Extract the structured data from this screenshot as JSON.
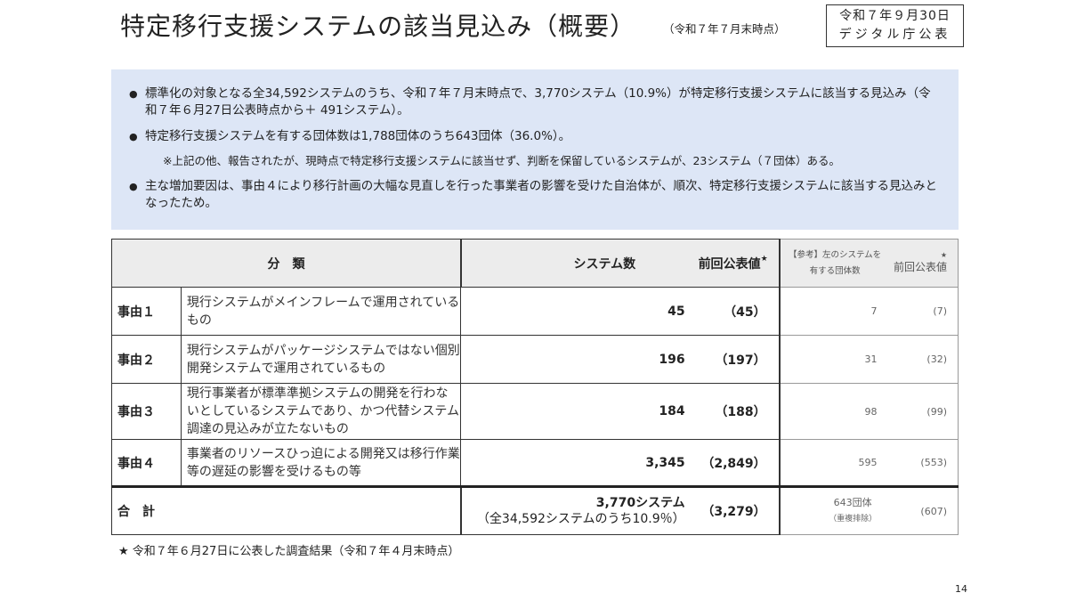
{
  "header": {
    "title": "特定移行支援システムの該当見込み（概要）",
    "as_of": "（令和７年７月末時点）",
    "date_line1": "令和７年９月30日",
    "date_line2": "デジタル庁公表"
  },
  "summary": {
    "bullet1": "標準化の対象となる全34,592システムのうち、令和７年７月末時点で、3,770システム（10.9%）が特定移行支援システムに該当する見込み（令和７年６月27日公表時点から＋ 491システム）。",
    "bullet2": "特定移行支援システムを有する団体数は1,788団体のうち643団体（36.0%）。",
    "note": "※上記の他、報告されたが、現時点で特定移行支援システムに該当せず、判断を保留しているシステムが、23システム（７団体）ある。",
    "bullet3": "主な増加要因は、事由４により移行計画の大幅な見直しを行った事業者の影響を受けた自治体が、順次、特定移行支援システムに該当する見込みとなったため。"
  },
  "table": {
    "headers": {
      "category": "分　類",
      "count": "システム数",
      "prev": "前回公表値",
      "star": "★",
      "ref": "【参考】左のシステムを",
      "ref2": "有する団体数",
      "ref_prev": "前回公表値"
    },
    "rows": [
      {
        "label": "事由１",
        "desc": "現行システムがメインフレームで運用されているもの",
        "count": "45",
        "prev": "（45）",
        "orgs": "7",
        "orgs_prev": "(7)"
      },
      {
        "label": "事由２",
        "desc": "現行システムがパッケージシステムではない個別開発システムで運用されているもの",
        "count": "196",
        "prev": "（197）",
        "orgs": "31",
        "orgs_prev": "(32)"
      },
      {
        "label": "事由３",
        "desc": "現行事業者が標準準拠システムの開発を行わないとしているシステムであり、かつ代替システム調達の見込みが立たないもの",
        "count": "184",
        "prev": "（188）",
        "orgs": "98",
        "orgs_prev": "(99)"
      },
      {
        "label": "事由４",
        "desc": "事業者のリソースひっ迫による開発又は移行作業等の遅延の影響を受けるもの等",
        "count": "3,345",
        "prev": "（2,849）",
        "orgs": "595",
        "orgs_prev": "(553)"
      }
    ],
    "total": {
      "label": "合　計",
      "count": "3,770システム",
      "count_sub": "（全34,592システムのうち10.9％）",
      "prev": "（3,279）",
      "orgs": "643団体",
      "orgs_sub": "（重複排除）",
      "orgs_prev": "(607)"
    }
  },
  "footnote": "★ 令和７年６月27日に公表した調査結果（令和７年４月末時点）",
  "page_number": "14"
}
